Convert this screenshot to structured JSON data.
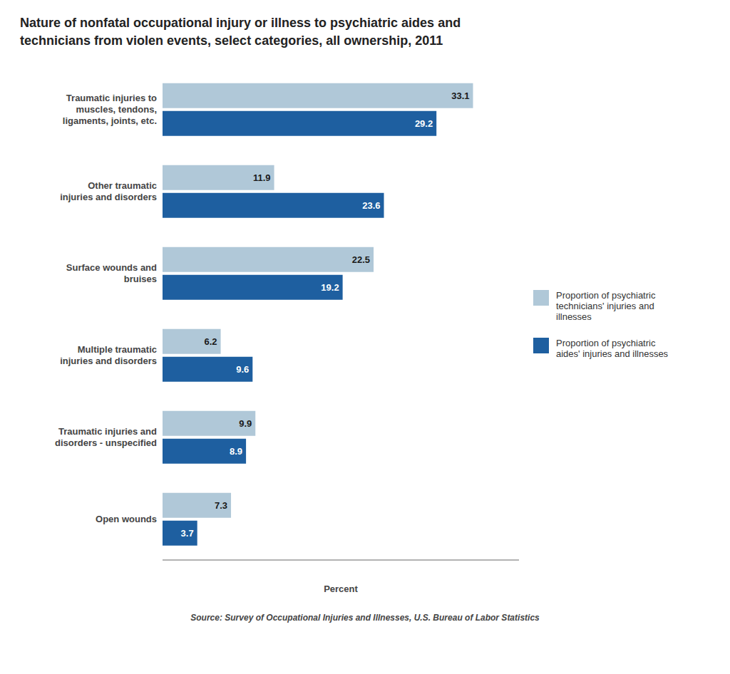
{
  "chart_data": {
    "type": "bar",
    "orientation": "horizontal",
    "title": "Nature of nonfatal occupational injury or illness to psychiatric aides and\ntechnicians from violen events, select categories, all ownership, 2011",
    "categories": [
      "Traumatic injuries to\nmuscles, tendons,\nligaments, joints, etc.",
      "Other traumatic\ninjuries and disorders",
      "Surface wounds and\nbruises",
      "Multiple traumatic\ninjuries and disorders",
      "Traumatic injuries and\ndisorders - unspecified",
      "Open wounds"
    ],
    "series": [
      {
        "name": "Proportion of psychiatric\ntechnicians' injuries and\nillnesses",
        "color": "#b0c8d8",
        "values": [
          33.1,
          11.9,
          22.5,
          6.2,
          9.9,
          7.3
        ]
      },
      {
        "name": "Proportion of psychiatric\naides' injuries and illnesses",
        "color": "#1e5fa0",
        "values": [
          29.2,
          23.6,
          19.2,
          9.6,
          8.9,
          3.7
        ]
      }
    ],
    "xlabel": "Percent",
    "xlim": [
      0,
      38
    ],
    "xticks": [],
    "tick_labels": "y",
    "grid": false,
    "legend": "right",
    "data_labels": true,
    "annotations": [
      "Source: Survey of Occupational Injuries and Illnesses, U.S. Bureau of Labor Statistics"
    ]
  }
}
